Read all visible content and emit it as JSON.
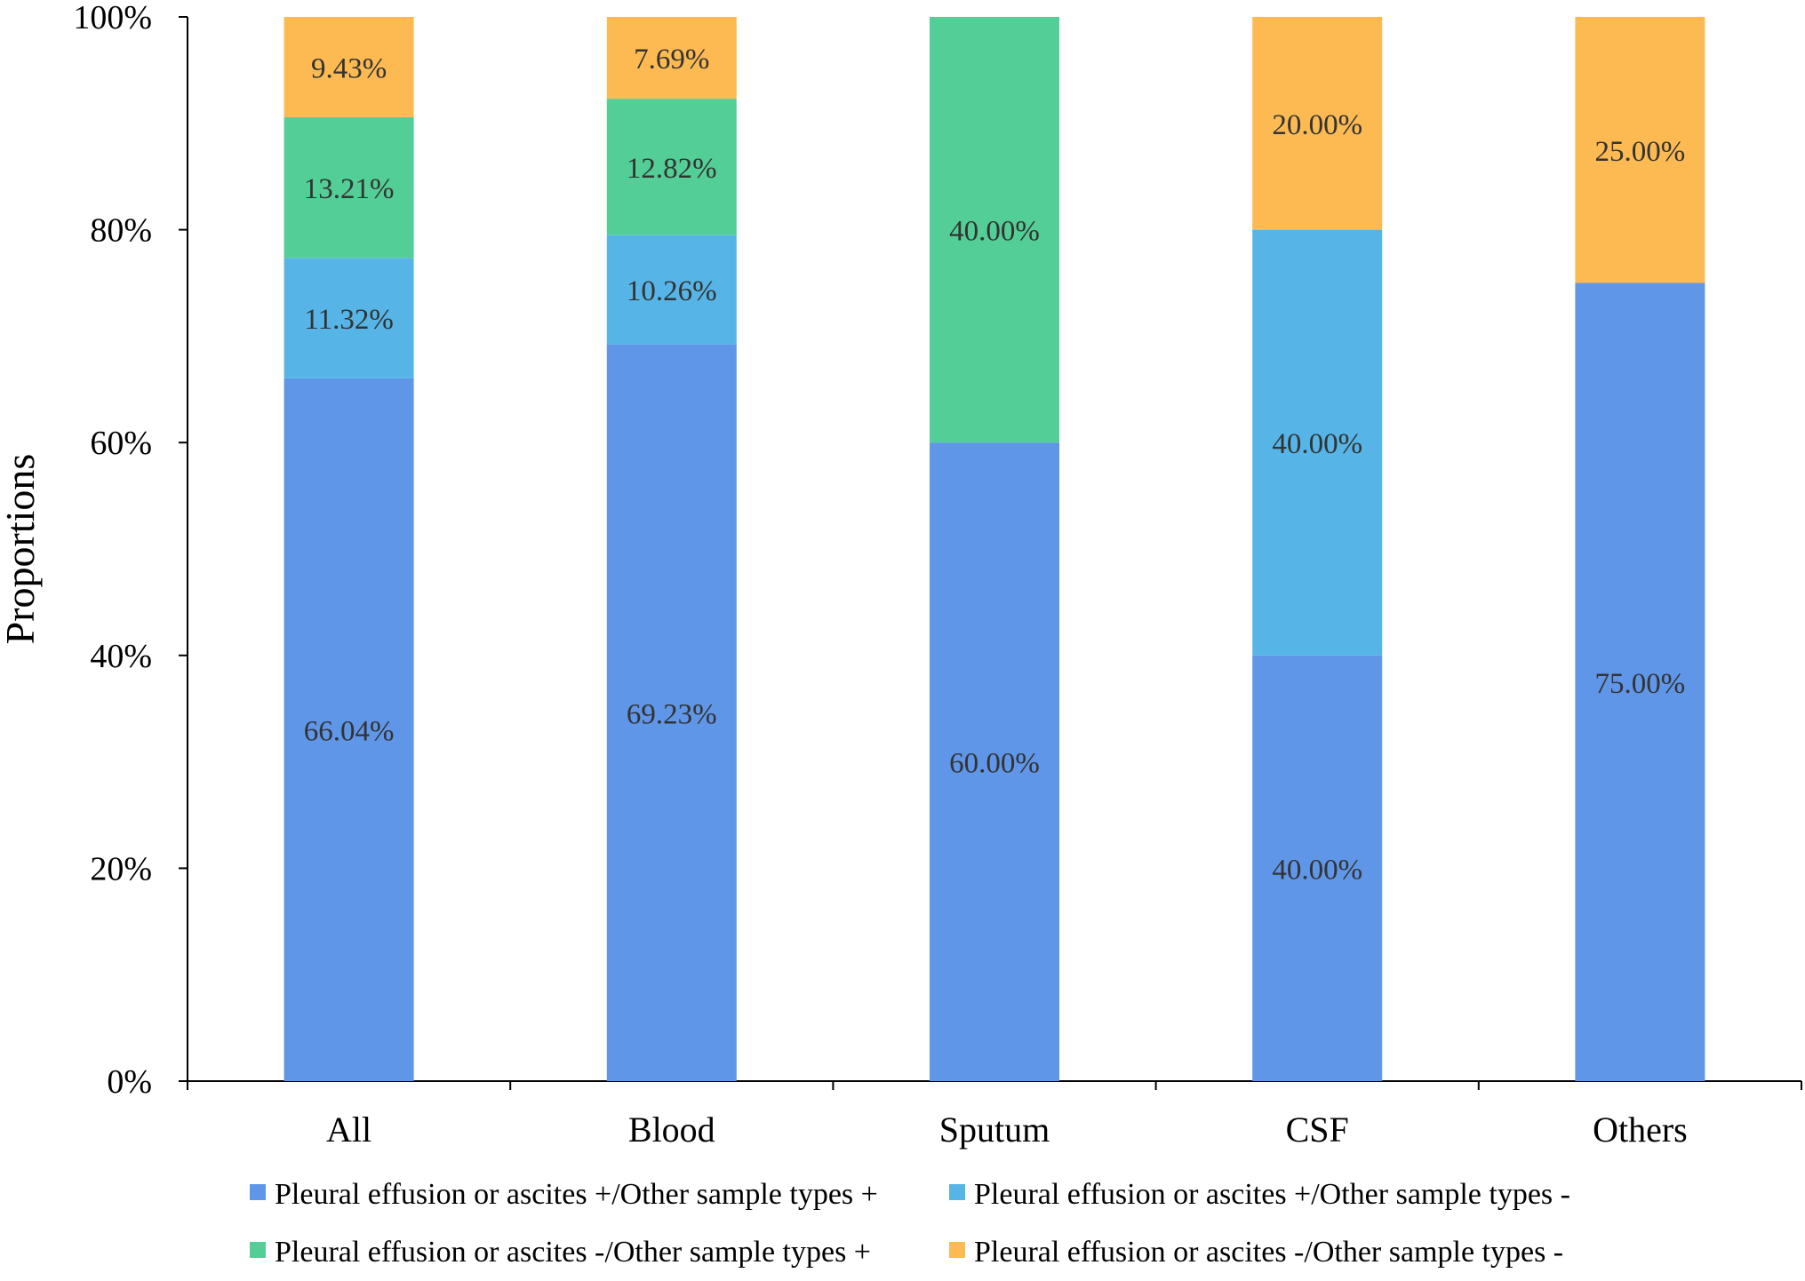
{
  "chart_data": {
    "type": "bar",
    "stacked": true,
    "title": "",
    "xlabel": "",
    "ylabel": "Proportions",
    "ylim": [
      0,
      100
    ],
    "yticks": [
      "0%",
      "20%",
      "40%",
      "60%",
      "80%",
      "100%"
    ],
    "categories": [
      "All",
      "Blood",
      "Sputum",
      "CSF",
      "Others"
    ],
    "series": [
      {
        "name": "Pleural effusion or ascites +/Other sample types +",
        "color": "#6096E8",
        "values": [
          66.04,
          69.23,
          60.0,
          40.0,
          75.0
        ],
        "labels": [
          "66.04%",
          "69.23%",
          "60.00%",
          "40.00%",
          "75.00%"
        ]
      },
      {
        "name": "Pleural effusion or ascites +/Other sample types -",
        "color": "#56B5E6",
        "values": [
          11.32,
          10.26,
          0,
          40.0,
          0
        ],
        "labels": [
          "11.32%",
          "10.26%",
          "",
          "40.00%",
          ""
        ]
      },
      {
        "name": "Pleural effusion or ascites -/Other sample types +",
        "color": "#52CE96",
        "values": [
          13.21,
          12.82,
          40.0,
          0,
          0
        ],
        "labels": [
          "13.21%",
          "12.82%",
          "40.00%",
          "",
          ""
        ]
      },
      {
        "name": "Pleural effusion or ascites -/Other sample types -",
        "color": "#FDBA53",
        "values": [
          9.43,
          7.69,
          0,
          20.0,
          25.0
        ],
        "labels": [
          "9.43%",
          "7.69%",
          "",
          "20.00%",
          "25.00%"
        ]
      }
    ],
    "legend_position": "bottom"
  }
}
